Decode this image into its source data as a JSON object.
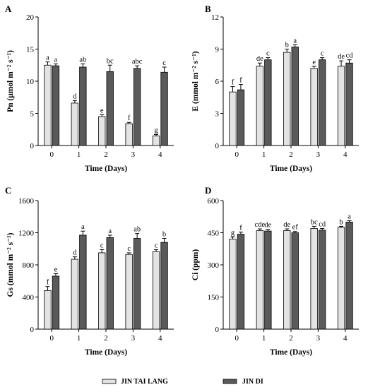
{
  "legend": {
    "series_names": [
      "JIN TAI LANG",
      "JIN DI"
    ],
    "colors": [
      "#e3e3e3",
      "#5a5a5a"
    ]
  },
  "chart_data": [
    {
      "panel": "A",
      "type": "bar",
      "categories": [
        "0",
        "1",
        "2",
        "3",
        "4"
      ],
      "xlabel": "Time (Days)",
      "ylabel": "Pn (μmol m⁻² s⁻¹)",
      "ylim": [
        0,
        20
      ],
      "yticks": [
        "0",
        "5",
        "10",
        "15",
        "20"
      ],
      "grid": false,
      "series": [
        {
          "name": "JIN TAI LANG",
          "values": [
            12.5,
            6.6,
            4.5,
            3.4,
            1.5
          ],
          "errors": [
            0.5,
            0.4,
            0.3,
            0.2,
            0.2
          ],
          "labels": [
            "a",
            "d",
            "e",
            "f",
            "g"
          ]
        },
        {
          "name": "JIN DI",
          "values": [
            12.4,
            12.2,
            11.5,
            12.0,
            11.4
          ],
          "errors": [
            0.3,
            0.5,
            1.0,
            0.4,
            0.8
          ],
          "labels": [
            "a",
            "ab",
            "bc",
            "abc",
            "c"
          ]
        }
      ]
    },
    {
      "panel": "B",
      "type": "bar",
      "categories": [
        "0",
        "1",
        "2",
        "3",
        "4"
      ],
      "xlabel": "Time (Days)",
      "ylabel": "E (mmol m⁻² s⁻¹)",
      "ylim": [
        0,
        12
      ],
      "yticks": [
        "0",
        "3",
        "6",
        "9",
        "12"
      ],
      "grid": false,
      "series": [
        {
          "name": "JIN TAI LANG",
          "values": [
            5.0,
            7.4,
            8.7,
            7.2,
            7.4
          ],
          "errors": [
            0.5,
            0.3,
            0.3,
            0.2,
            0.5
          ],
          "labels": [
            "f",
            "de",
            "b",
            "e",
            "de"
          ]
        },
        {
          "name": "JIN DI",
          "values": [
            5.2,
            8.0,
            9.2,
            8.0,
            7.7
          ],
          "errors": [
            0.5,
            0.2,
            0.2,
            0.2,
            0.3
          ],
          "labels": [
            "f",
            "c",
            "a",
            "c",
            "cd"
          ]
        }
      ]
    },
    {
      "panel": "C",
      "type": "bar",
      "categories": [
        "0",
        "1",
        "2",
        "3",
        "4"
      ],
      "xlabel": "Time (Days)",
      "ylabel": "Gs (mmol m⁻² s⁻¹)",
      "ylim": [
        0,
        1600
      ],
      "yticks": [
        "0",
        "400",
        "800",
        "1200",
        "1600"
      ],
      "grid": false,
      "series": [
        {
          "name": "JIN TAI LANG",
          "values": [
            480,
            870,
            950,
            930,
            965
          ],
          "errors": [
            50,
            30,
            40,
            20,
            25
          ],
          "labels": [
            "f",
            "d",
            "c",
            "c",
            "c"
          ]
        },
        {
          "name": "JIN DI",
          "values": [
            660,
            1170,
            1140,
            1130,
            1080
          ],
          "errors": [
            30,
            50,
            30,
            60,
            50
          ],
          "labels": [
            "e",
            "a",
            "a",
            "ab",
            "b"
          ]
        }
      ]
    },
    {
      "panel": "D",
      "type": "bar",
      "categories": [
        "0",
        "1",
        "2",
        "3",
        "4"
      ],
      "xlabel": "Time (Days)",
      "ylabel": "Ci (ppm)",
      "ylim": [
        0,
        600
      ],
      "yticks": [
        "0",
        "150",
        "300",
        "450",
        "600"
      ],
      "grid": false,
      "series": [
        {
          "name": "JIN TAI LANG",
          "values": [
            420,
            460,
            460,
            470,
            475
          ],
          "errors": [
            10,
            8,
            8,
            10,
            5
          ],
          "labels": [
            "g",
            "cde",
            "de",
            "bc",
            "b"
          ]
        },
        {
          "name": "JIN DI",
          "values": [
            443,
            458,
            450,
            462,
            500
          ],
          "errors": [
            10,
            8,
            6,
            8,
            6
          ],
          "labels": [
            "f",
            "de",
            "ef",
            "cd",
            "a"
          ]
        }
      ]
    }
  ]
}
